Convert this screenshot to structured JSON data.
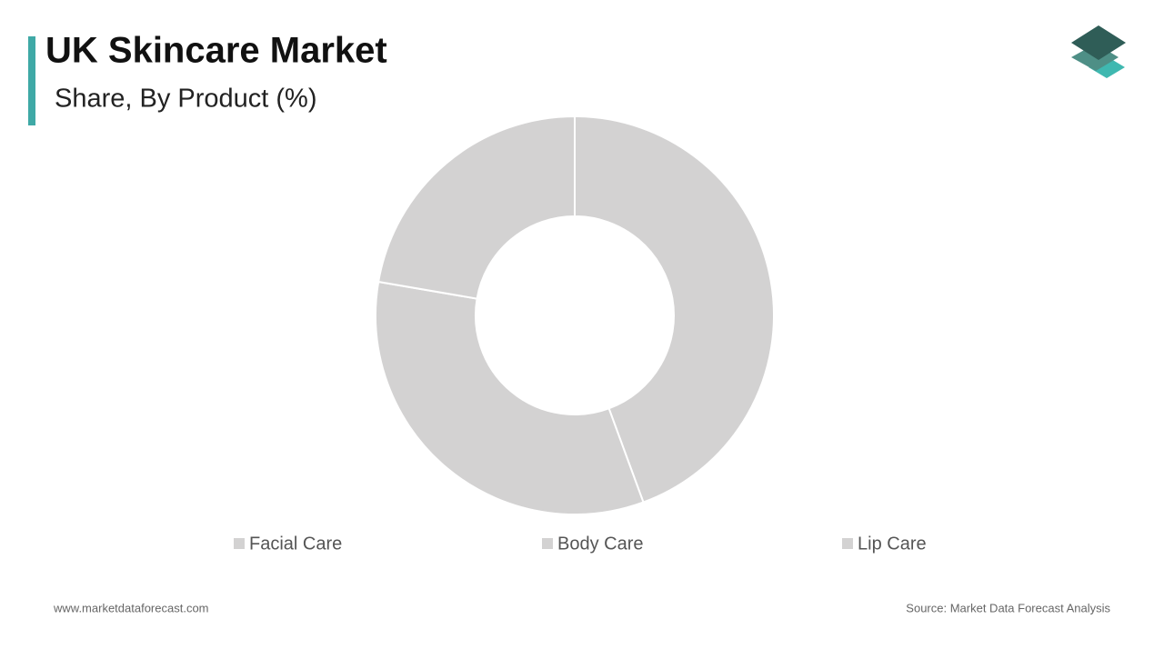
{
  "chart_data": {
    "type": "donut",
    "title": "UK Skincare Market",
    "subtitle": "Share, By Product (%)",
    "categories": [
      "Facial Care",
      "Body Care",
      "Lip Care"
    ],
    "values": [
      44.4,
      33.3,
      22.3
    ],
    "colors": [
      "#d3d2d2",
      "#d3d2d2",
      "#d3d2d2"
    ],
    "legend": "bottom"
  },
  "footer": {
    "website": "www.marketdataforecast.com",
    "source": "Source: Market Data Forecast Analysis"
  }
}
